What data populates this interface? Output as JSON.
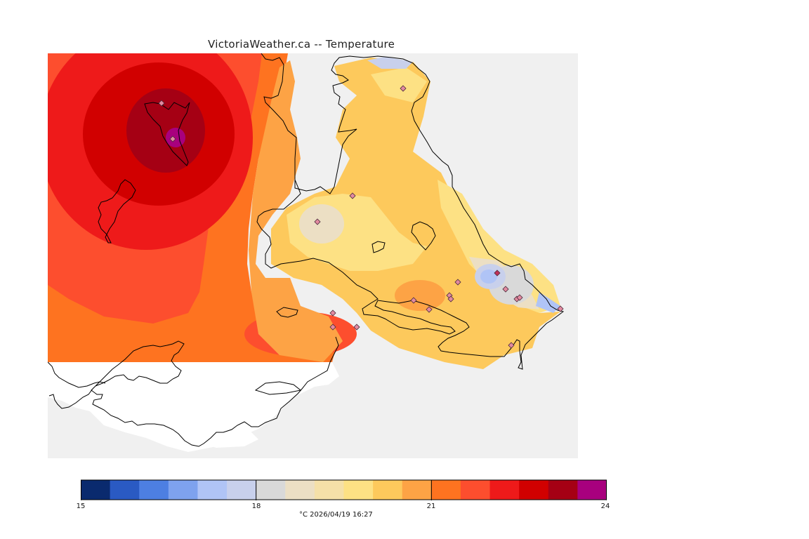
{
  "title": "VictoriaWeather.ca -- Temperature",
  "caption": "°C  2026/04/19 16:27",
  "legend": {
    "min": 15,
    "max": 24,
    "tick_labels": [
      "15",
      "18",
      "21",
      "24"
    ],
    "colors": [
      "#0a2a6e",
      "#2a5ac3",
      "#4d7fe2",
      "#7ea2ee",
      "#b0c4f6",
      "#c8d0ec",
      "#d9d9d9",
      "#ecdfc4",
      "#f5e0a8",
      "#fde184",
      "#fdc95c",
      "#fda345",
      "#fe7320",
      "#fd4e2e",
      "#ee1a1a",
      "#d10000",
      "#a50014",
      "#a8007e"
    ]
  },
  "map": {
    "background_color": "#f0f0f0",
    "station_marker_color": "#e28aa0",
    "station_count": 19
  }
}
